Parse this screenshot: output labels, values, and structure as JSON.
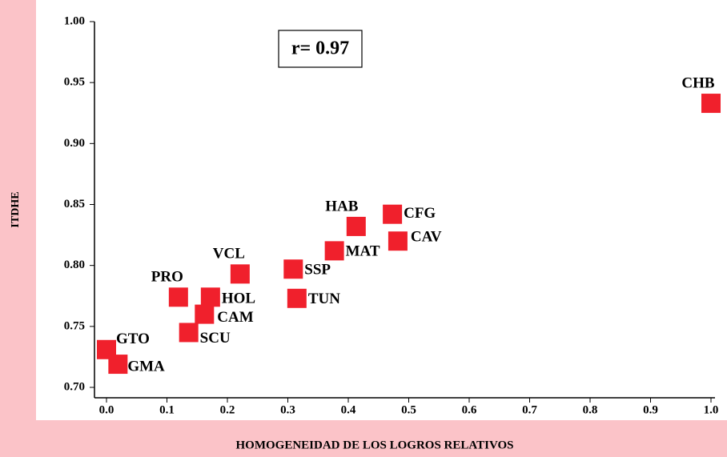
{
  "chart_data": {
    "type": "scatter",
    "xlabel": "HOMOGENEIDAD DE LOS LOGROS RELATIVOS",
    "ylabel": "ITDHE",
    "annotation": "r= 0.97",
    "color": "#f0202c",
    "x": [
      1.0,
      0.413,
      0.473,
      0.482,
      0.377,
      0.309,
      0.315,
      0.221,
      0.119,
      0.172,
      0.162,
      0.136,
      0.0,
      0.019
    ],
    "y": [
      0.933,
      0.832,
      0.842,
      0.82,
      0.812,
      0.797,
      0.773,
      0.793,
      0.774,
      0.774,
      0.76,
      0.745,
      0.731,
      0.719
    ],
    "point_labels": [
      "CHB",
      "HAB",
      "CFG",
      "CAV",
      "MAT",
      "SSP",
      "TUN",
      "VCL",
      "PRO",
      "HOL",
      "CAM",
      "SCU",
      "GTO",
      "GMA"
    ],
    "xlim": [
      0,
      1
    ],
    "ylim": [
      0.7,
      1
    ],
    "xticks": [
      {
        "value": 0,
        "label": "0.0"
      },
      0.1,
      0.2,
      0.3,
      0.4,
      0.5,
      0.6,
      0.7,
      0.8,
      0.9,
      {
        "value": 1,
        "label": "1.0"
      }
    ],
    "yticks": [
      {
        "value": 0.7,
        "label": "0.70"
      },
      {
        "value": 0.75,
        "label": "0.75"
      },
      {
        "value": 0.8,
        "label": "0.80"
      },
      {
        "value": 0.85,
        "label": "0.85"
      },
      {
        "value": 0.9,
        "label": "0.90"
      },
      {
        "value": 0.95,
        "label": "0.95"
      },
      {
        "value": 1,
        "label": "1.00"
      }
    ]
  }
}
